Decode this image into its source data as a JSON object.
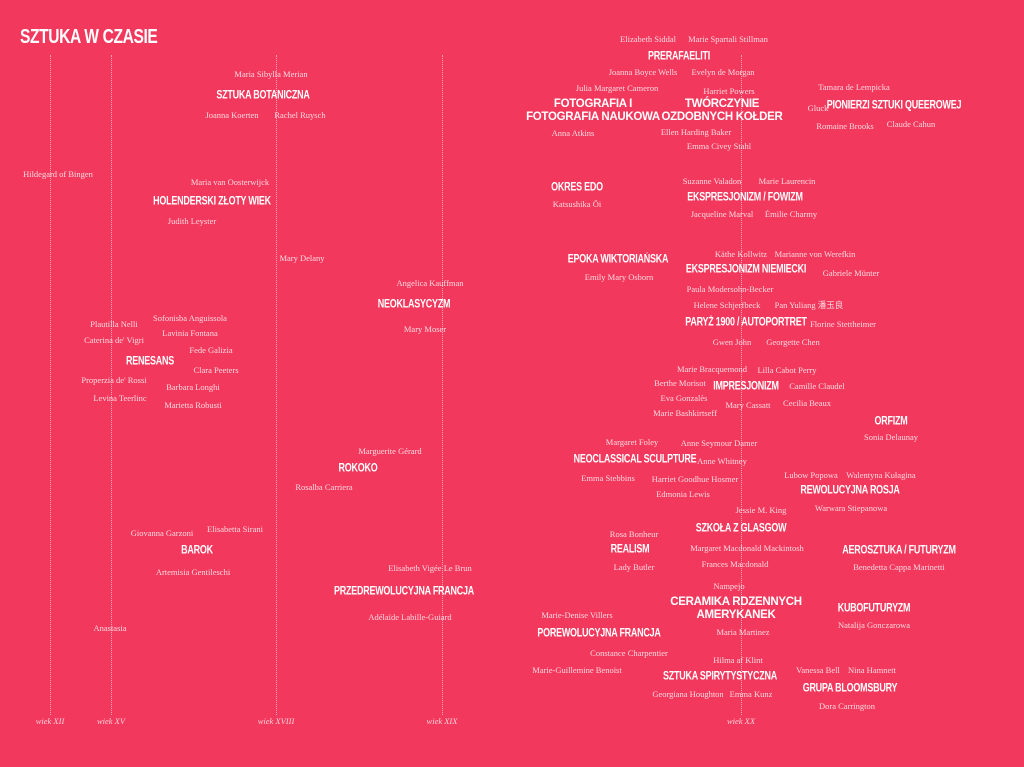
{
  "title": "SZTUKA W CZASIE",
  "centuries": [
    "wiek XII",
    "wiek XV",
    "wiek XVIII",
    "wiek XIX",
    "wiek XX"
  ],
  "artists": [
    "Hildegard of Bingen",
    "Mary Delany",
    "Anastasia"
  ],
  "movements": [
    {
      "label": "SZTUKA BOTANICZNA",
      "artists": [
        "Maria Sibylla Merian",
        "Joanna Koerten",
        "Rachel Ruysch"
      ]
    },
    {
      "label": "HOLENDERSKI ZŁOTY WIEK",
      "artists": [
        "Maria van Oosterwijck",
        "Judith Leyster"
      ]
    },
    {
      "label": "NEOKLASYCYZM",
      "artists": [
        "Angelica Kauffman",
        "Mary Moser"
      ]
    },
    {
      "label": "RENESANS",
      "artists": [
        "Plautilla Nelli",
        "Sofonisba Anguissola",
        "Lavinia Fontana",
        "Caterina de' Vigri",
        "Fede Galizia",
        "Clara Peeters",
        "Properzia de' Rossi",
        "Barbara Longhi",
        "Levina Teerlinc",
        "Marietta Robusti"
      ]
    },
    {
      "label": "ROKOKO",
      "artists": [
        "Marguerite Gérard",
        "Rosalba Carriera"
      ]
    },
    {
      "label": "BAROK",
      "artists": [
        "Giovanna Garzoni",
        "Elisabetta Sirani",
        "Artemisia Gentileschi"
      ]
    },
    {
      "label": "PRZEDREWOLUCYJNA FRANCJA",
      "artists": [
        "Elisabeth Vigée Le Brun",
        "Adélaïde Labille-Guiard"
      ]
    },
    {
      "label": "PRERAFAELITI",
      "artists": [
        "Elizabeth Siddal",
        "Marie Spartali Stillman",
        "Joanna Boyce Wells",
        "Evelyn de Morgan"
      ]
    },
    {
      "label": "FOTOGRAFIA I FOTOGRAFIA NAUKOWA",
      "artists": [
        "Julia Margaret Cameron",
        "Anna Atkins"
      ]
    },
    {
      "label": "TWÓRCZYNIE OZDOBNYCH KOŁDER",
      "artists": [
        "Harriet Powers",
        "Ellen Harding Baker",
        "Emma Civey Stahl"
      ]
    },
    {
      "label": "PIONIERZI SZTUKI QUEEROWEJ",
      "artists": [
        "Tamara de Lempicka",
        "Gluck",
        "Romaine Brooks",
        "Claude Cahun"
      ]
    },
    {
      "label": "OKRES EDO",
      "artists": [
        "Katsushika Ōi"
      ]
    },
    {
      "label": "EKSPRESJONIZM / FOWIZM",
      "artists": [
        "Suzanne Valadon",
        "Marie Laurencin",
        "Jacqueline Marval",
        "Émilie Charmy"
      ]
    },
    {
      "label": "EPOKA WIKTORIAŃSKA",
      "artists": [
        "Emily Mary Osborn"
      ]
    },
    {
      "label": "EKSPRESJONIZM NIEMIECKI",
      "artists": [
        "Käthe Kollwitz",
        "Marianne von Werefkin",
        "Gabriele Münter",
        "Paula Modersohn-Becker"
      ]
    },
    {
      "label": "PARYŻ 1900 / AUTOPORTRET",
      "artists": [
        "Helene Schjerfbeck",
        "Pan Yuliang 潘玉良",
        "Florine Stettheimer",
        "Gwen John",
        "Georgette Chen"
      ]
    },
    {
      "label": "IMPRESJONIZM",
      "artists": [
        "Marie Bracquemond",
        "Lilla Cabot Perry",
        "Berthe Morisot",
        "Camille Claudel",
        "Eva Gonzalès",
        "Mary Cassatt",
        "Cecilia Beaux",
        "Marie Bashkirtseff"
      ]
    },
    {
      "label": "ORFIZM",
      "artists": [
        "Sonia Delaunay"
      ]
    },
    {
      "label": "NEOCLASSICAL SCULPTURE",
      "artists": [
        "Margaret Foley",
        "Anne Seymour Damer",
        "Anne Whitney",
        "Emma Stebbins",
        "Harriet Goodhue Hosmer",
        "Edmonia Lewis"
      ]
    },
    {
      "label": "REWOLUCYJNA ROSJA",
      "artists": [
        "Lubow Popowa",
        "Walentyna Kułagina",
        "Warwara Stiepanowa"
      ]
    },
    {
      "label": "SZKOŁA Z GLASGOW",
      "artists": [
        "Jessie M. King",
        "Margaret Macdonald Mackintosh",
        "Frances Macdonald"
      ]
    },
    {
      "label": "REALISM",
      "artists": [
        "Rosa Bonheur",
        "Lady Butler"
      ]
    },
    {
      "label": "AEROSZTUKA / FUTURYZM",
      "artists": [
        "Benedetta Cappa Marinetti"
      ]
    },
    {
      "label": "CERAMIKA RDZENNYCH AMERYKANEK",
      "artists": [
        "Nampejo",
        "Maria Martinez"
      ]
    },
    {
      "label": "KUBOFUTURYZM",
      "artists": [
        "Natalija Gonczarowa"
      ]
    },
    {
      "label": "POREWOLUCYJNA FRANCJA",
      "artists": [
        "Marie-Denise Villers",
        "Constance Charpentier",
        "Marie-Guillemine Benoist"
      ]
    },
    {
      "label": "SZTUKA SPIRYTYSTYCZNA",
      "artists": [
        "Hilma af Klint",
        "Georgiana Houghton",
        "Emma Kunz"
      ]
    },
    {
      "label": "GRUPA BLOOMSBURY",
      "artists": [
        "Vanessa Bell",
        "Nina Hamnett",
        "Dora Carrington"
      ]
    }
  ]
}
